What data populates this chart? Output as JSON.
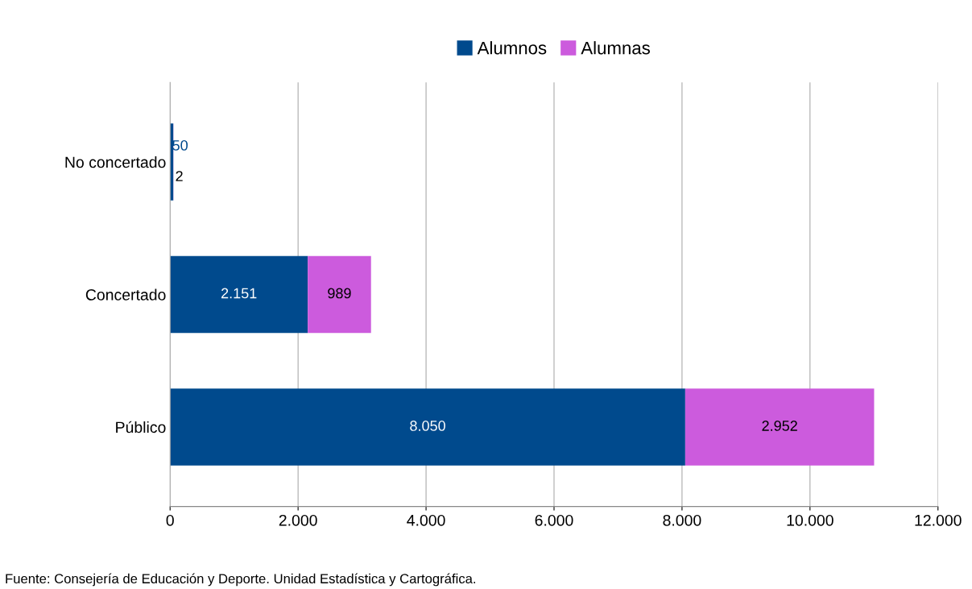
{
  "chart_data": {
    "type": "bar",
    "orientation": "horizontal",
    "stacked": true,
    "categories": [
      "No concertado",
      "Concertado",
      "Público"
    ],
    "series": [
      {
        "name": "Alumnos",
        "color": "#004a8d",
        "values": [
          50,
          2151,
          8050
        ],
        "value_labels": [
          "50",
          "2.151",
          "8.050"
        ]
      },
      {
        "name": "Alumnas",
        "color": "#cc5bdd",
        "values": [
          2,
          989,
          2952
        ],
        "value_labels": [
          "2",
          "989",
          "2.952"
        ]
      }
    ],
    "xlim": [
      0,
      12000
    ],
    "xticks": [
      0,
      {
        "value": 2000,
        "label": "2.000"
      },
      {
        "value": 4000,
        "label": "4.000"
      },
      {
        "value": 6000,
        "label": "6.000"
      },
      {
        "value": 8000,
        "label": "8.000"
      },
      {
        "value": 10000,
        "label": "10.000"
      },
      {
        "value": 12000,
        "label": "12.000"
      }
    ],
    "grid": "x",
    "legend": "top",
    "annotations": [
      "Fuente: Consejería de Educación y Deporte. Unidad Estadística y Cartográfica."
    ]
  }
}
